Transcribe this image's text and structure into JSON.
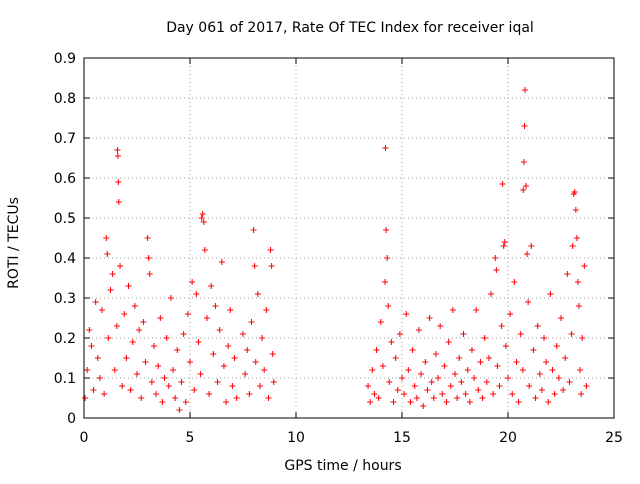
{
  "chart_data": {
    "type": "scatter",
    "title": "Day 061 of 2017, Rate Of TEC Index for receiver iqal",
    "xlabel": "GPS time / hours",
    "ylabel": "ROTI / TECUs",
    "xlim": [
      0,
      25
    ],
    "ylim": [
      0,
      0.9
    ],
    "xticks": [
      0,
      5,
      10,
      15,
      20,
      25
    ],
    "xtick_labels": [
      "0",
      "5",
      "10",
      "15",
      "20",
      "25"
    ],
    "yticks": [
      0,
      0.1,
      0.2,
      0.3,
      0.4,
      0.5,
      0.6,
      0.7,
      0.8,
      0.9
    ],
    "ytick_labels": [
      "0",
      "0.1",
      "0.2",
      "0.3",
      "0.4",
      "0.5",
      "0.6",
      "0.7",
      "0.8",
      "0.9"
    ],
    "grid": true,
    "marker": "+",
    "color": "#ff0000",
    "series": [
      {
        "name": "ROTI",
        "points": [
          [
            0.05,
            0.05
          ],
          [
            0.15,
            0.12
          ],
          [
            0.25,
            0.22
          ],
          [
            0.35,
            0.18
          ],
          [
            0.45,
            0.07
          ],
          [
            0.55,
            0.29
          ],
          [
            0.65,
            0.15
          ],
          [
            0.75,
            0.1
          ],
          [
            0.85,
            0.27
          ],
          [
            0.95,
            0.06
          ],
          [
            1.05,
            0.45
          ],
          [
            1.1,
            0.41
          ],
          [
            1.15,
            0.2
          ],
          [
            1.25,
            0.32
          ],
          [
            1.35,
            0.36
          ],
          [
            1.45,
            0.12
          ],
          [
            1.55,
            0.23
          ],
          [
            1.58,
            0.67
          ],
          [
            1.6,
            0.655
          ],
          [
            1.62,
            0.59
          ],
          [
            1.64,
            0.54
          ],
          [
            1.7,
            0.38
          ],
          [
            1.8,
            0.08
          ],
          [
            1.9,
            0.26
          ],
          [
            2.0,
            0.15
          ],
          [
            2.1,
            0.33
          ],
          [
            2.2,
            0.07
          ],
          [
            2.3,
            0.19
          ],
          [
            2.4,
            0.28
          ],
          [
            2.5,
            0.11
          ],
          [
            2.6,
            0.22
          ],
          [
            2.7,
            0.05
          ],
          [
            2.8,
            0.24
          ],
          [
            2.9,
            0.14
          ],
          [
            3.0,
            0.45
          ],
          [
            3.05,
            0.4
          ],
          [
            3.1,
            0.36
          ],
          [
            3.2,
            0.09
          ],
          [
            3.3,
            0.18
          ],
          [
            3.4,
            0.06
          ],
          [
            3.5,
            0.13
          ],
          [
            3.6,
            0.25
          ],
          [
            3.7,
            0.04
          ],
          [
            3.8,
            0.1
          ],
          [
            3.9,
            0.2
          ],
          [
            4.0,
            0.08
          ],
          [
            4.1,
            0.3
          ],
          [
            4.2,
            0.12
          ],
          [
            4.3,
            0.05
          ],
          [
            4.4,
            0.17
          ],
          [
            4.5,
            0.02
          ],
          [
            4.6,
            0.09
          ],
          [
            4.7,
            0.21
          ],
          [
            4.8,
            0.04
          ],
          [
            4.9,
            0.26
          ],
          [
            5.0,
            0.14
          ],
          [
            5.1,
            0.34
          ],
          [
            5.2,
            0.07
          ],
          [
            5.3,
            0.31
          ],
          [
            5.4,
            0.19
          ],
          [
            5.5,
            0.11
          ],
          [
            5.55,
            0.5
          ],
          [
            5.6,
            0.51
          ],
          [
            5.65,
            0.49
          ],
          [
            5.7,
            0.42
          ],
          [
            5.8,
            0.25
          ],
          [
            5.9,
            0.06
          ],
          [
            6.0,
            0.33
          ],
          [
            6.1,
            0.16
          ],
          [
            6.2,
            0.28
          ],
          [
            6.3,
            0.09
          ],
          [
            6.4,
            0.22
          ],
          [
            6.5,
            0.39
          ],
          [
            6.6,
            0.13
          ],
          [
            6.7,
            0.04
          ],
          [
            6.8,
            0.18
          ],
          [
            6.9,
            0.27
          ],
          [
            7.0,
            0.08
          ],
          [
            7.1,
            0.15
          ],
          [
            7.2,
            0.05
          ],
          [
            7.5,
            0.21
          ],
          [
            7.6,
            0.11
          ],
          [
            7.7,
            0.17
          ],
          [
            7.8,
            0.06
          ],
          [
            7.9,
            0.24
          ],
          [
            8.0,
            0.47
          ],
          [
            8.05,
            0.38
          ],
          [
            8.1,
            0.14
          ],
          [
            8.2,
            0.31
          ],
          [
            8.3,
            0.08
          ],
          [
            8.4,
            0.2
          ],
          [
            8.5,
            0.12
          ],
          [
            8.6,
            0.27
          ],
          [
            8.7,
            0.05
          ],
          [
            8.8,
            0.42
          ],
          [
            8.85,
            0.38
          ],
          [
            8.9,
            0.16
          ],
          [
            8.95,
            0.09
          ],
          [
            13.4,
            0.08
          ],
          [
            13.5,
            0.04
          ],
          [
            13.6,
            0.12
          ],
          [
            13.7,
            0.06
          ],
          [
            13.8,
            0.17
          ],
          [
            13.9,
            0.05
          ],
          [
            14.0,
            0.24
          ],
          [
            14.1,
            0.13
          ],
          [
            14.2,
            0.34
          ],
          [
            14.22,
            0.675
          ],
          [
            14.25,
            0.47
          ],
          [
            14.3,
            0.4
          ],
          [
            14.35,
            0.28
          ],
          [
            14.4,
            0.09
          ],
          [
            14.5,
            0.19
          ],
          [
            14.6,
            0.04
          ],
          [
            14.7,
            0.15
          ],
          [
            14.8,
            0.07
          ],
          [
            14.9,
            0.21
          ],
          [
            15.0,
            0.1
          ],
          [
            15.1,
            0.06
          ],
          [
            15.2,
            0.26
          ],
          [
            15.3,
            0.12
          ],
          [
            15.4,
            0.04
          ],
          [
            15.5,
            0.17
          ],
          [
            15.6,
            0.08
          ],
          [
            15.7,
            0.05
          ],
          [
            15.8,
            0.22
          ],
          [
            15.9,
            0.11
          ],
          [
            16.0,
            0.03
          ],
          [
            16.1,
            0.14
          ],
          [
            16.2,
            0.07
          ],
          [
            16.3,
            0.25
          ],
          [
            16.4,
            0.09
          ],
          [
            16.5,
            0.05
          ],
          [
            16.6,
            0.16
          ],
          [
            16.7,
            0.1
          ],
          [
            16.8,
            0.23
          ],
          [
            16.9,
            0.06
          ],
          [
            17.0,
            0.13
          ],
          [
            17.1,
            0.04
          ],
          [
            17.2,
            0.19
          ],
          [
            17.3,
            0.08
          ],
          [
            17.4,
            0.27
          ],
          [
            17.5,
            0.11
          ],
          [
            17.6,
            0.05
          ],
          [
            17.7,
            0.15
          ],
          [
            17.8,
            0.09
          ],
          [
            17.9,
            0.21
          ],
          [
            18.0,
            0.06
          ],
          [
            18.1,
            0.12
          ],
          [
            18.2,
            0.04
          ],
          [
            18.3,
            0.17
          ],
          [
            18.4,
            0.1
          ],
          [
            18.5,
            0.27
          ],
          [
            18.6,
            0.07
          ],
          [
            18.7,
            0.14
          ],
          [
            18.8,
            0.05
          ],
          [
            18.9,
            0.2
          ],
          [
            19.0,
            0.09
          ],
          [
            19.1,
            0.15
          ],
          [
            19.2,
            0.31
          ],
          [
            19.3,
            0.06
          ],
          [
            19.4,
            0.4
          ],
          [
            19.45,
            0.37
          ],
          [
            19.5,
            0.13
          ],
          [
            19.6,
            0.08
          ],
          [
            19.7,
            0.23
          ],
          [
            19.75,
            0.585
          ],
          [
            19.8,
            0.43
          ],
          [
            19.85,
            0.44
          ],
          [
            19.9,
            0.18
          ],
          [
            20.0,
            0.1
          ],
          [
            20.1,
            0.26
          ],
          [
            20.2,
            0.06
          ],
          [
            20.3,
            0.34
          ],
          [
            20.4,
            0.14
          ],
          [
            20.5,
            0.04
          ],
          [
            20.6,
            0.21
          ],
          [
            20.7,
            0.12
          ],
          [
            20.72,
            0.57
          ],
          [
            20.75,
            0.64
          ],
          [
            20.78,
            0.73
          ],
          [
            20.8,
            0.82
          ],
          [
            20.85,
            0.58
          ],
          [
            20.9,
            0.41
          ],
          [
            20.95,
            0.29
          ],
          [
            21.0,
            0.08
          ],
          [
            21.1,
            0.43
          ],
          [
            21.2,
            0.17
          ],
          [
            21.3,
            0.05
          ],
          [
            21.4,
            0.23
          ],
          [
            21.5,
            0.11
          ],
          [
            21.6,
            0.07
          ],
          [
            21.7,
            0.2
          ],
          [
            21.8,
            0.14
          ],
          [
            21.9,
            0.04
          ],
          [
            22.0,
            0.31
          ],
          [
            22.1,
            0.12
          ],
          [
            22.2,
            0.06
          ],
          [
            22.3,
            0.18
          ],
          [
            22.4,
            0.1
          ],
          [
            22.5,
            0.25
          ],
          [
            22.6,
            0.07
          ],
          [
            22.7,
            0.15
          ],
          [
            22.8,
            0.36
          ],
          [
            22.9,
            0.09
          ],
          [
            23.0,
            0.21
          ],
          [
            23.05,
            0.43
          ],
          [
            23.1,
            0.56
          ],
          [
            23.15,
            0.565
          ],
          [
            23.2,
            0.52
          ],
          [
            23.25,
            0.45
          ],
          [
            23.3,
            0.34
          ],
          [
            23.35,
            0.28
          ],
          [
            23.4,
            0.12
          ],
          [
            23.45,
            0.06
          ],
          [
            23.5,
            0.2
          ],
          [
            23.6,
            0.38
          ],
          [
            23.7,
            0.08
          ]
        ]
      }
    ]
  }
}
